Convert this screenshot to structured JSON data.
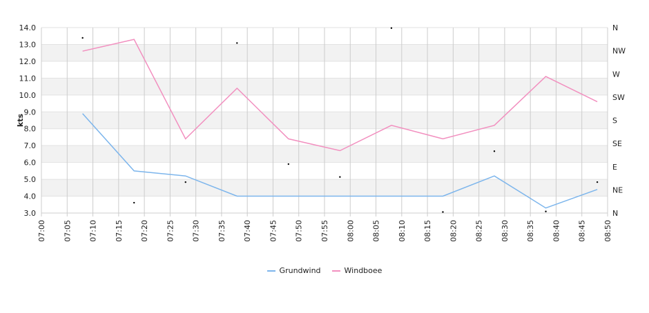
{
  "chart_data": {
    "type": "line",
    "ylabel": "kts",
    "ylim": [
      3.0,
      14.0
    ],
    "y_ticks": [
      "3.0",
      "4.0",
      "5.0",
      "6.0",
      "7.0",
      "8.0",
      "9.0",
      "10.0",
      "11.0",
      "12.0",
      "13.0",
      "14.0"
    ],
    "x_ticks": [
      "07:00",
      "07:05",
      "07:10",
      "07:15",
      "07:20",
      "07:25",
      "07:30",
      "07:35",
      "07:40",
      "07:45",
      "07:50",
      "07:55",
      "08:00",
      "08:05",
      "08:10",
      "08:15",
      "08:20",
      "08:25",
      "08:30",
      "08:35",
      "08:40",
      "08:45",
      "08:50"
    ],
    "xlim": [
      "07:00",
      "08:50"
    ],
    "direction_ticks": [
      "N",
      "NE",
      "E",
      "SE",
      "S",
      "SW",
      "W",
      "NW",
      "N"
    ],
    "x": [
      "07:08",
      "07:18",
      "07:28",
      "07:38",
      "07:48",
      "07:58",
      "08:08",
      "08:18",
      "08:28",
      "08:38",
      "08:48"
    ],
    "series": [
      {
        "name": "Grundwind",
        "color": "#7cb5ec",
        "values": [
          8.9,
          5.5,
          5.2,
          4.0,
          4.0,
          4.0,
          4.0,
          4.0,
          5.2,
          3.3,
          4.4
        ]
      },
      {
        "name": "Windboee",
        "color": "#f28fbf",
        "values": [
          12.6,
          13.3,
          7.4,
          10.4,
          7.4,
          6.7,
          8.2,
          7.4,
          8.2,
          11.1,
          9.6
        ]
      }
    ],
    "direction_degrees": [
      340,
      20,
      60,
      330,
      95,
      70,
      359,
      2,
      120,
      3,
      60
    ],
    "grid": true,
    "legend": "bottom-center",
    "band_color": "#f2f2f2",
    "grid_color": "#cccccc",
    "marker_color": "#000000"
  }
}
